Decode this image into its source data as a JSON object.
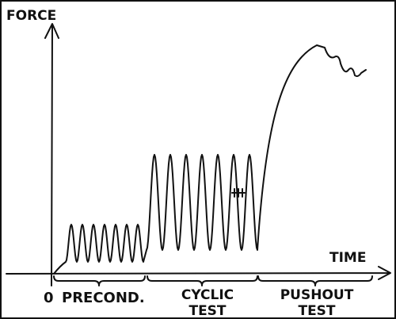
{
  "axes": {
    "y_label": "FORCE",
    "x_label": "TIME",
    "origin": "0"
  },
  "phases": [
    {
      "lines": [
        "PRECOND."
      ]
    },
    {
      "lines": [
        "CYCLIC",
        "TEST"
      ]
    },
    {
      "lines": [
        "PUSHOUT",
        "TEST"
      ]
    }
  ]
}
